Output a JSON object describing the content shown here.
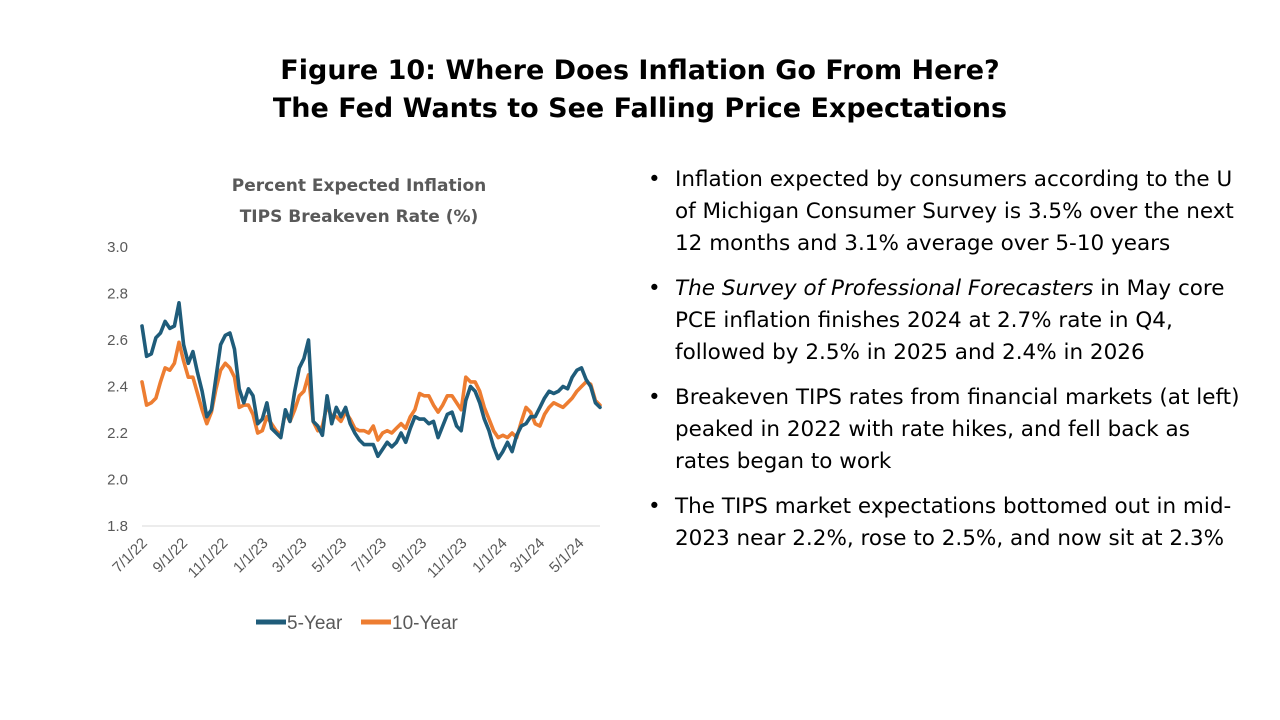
{
  "figure": {
    "title_line1": "Figure 10: Where Does Inflation Go From Here?",
    "title_line2": "The Fed Wants to See Falling Price Expectations"
  },
  "chart_data": {
    "type": "line",
    "title_line1": "Percent Expected Inflation",
    "title_line2": "TIPS Breakeven Rate (%)",
    "xlabel": "",
    "ylabel": "",
    "ylim": [
      1.8,
      3.0
    ],
    "yticks": [
      "3.0",
      "2.8",
      "2.6",
      "2.4",
      "2.2",
      "2.0",
      "1.8"
    ],
    "ytick_values": [
      3.0,
      2.8,
      2.6,
      2.4,
      2.2,
      2.0,
      1.8
    ],
    "xticks": [
      "7/1/22",
      "9/1/22",
      "11/1/22",
      "1/1/23",
      "3/1/23",
      "5/1/23",
      "7/1/23",
      "9/1/23",
      "11/1/23",
      "1/1/24",
      "3/1/24",
      "5/1/24"
    ],
    "x_index_range": [
      0,
      99
    ],
    "xtick_indices": [
      0,
      8.7,
      17.4,
      26.1,
      34.5,
      43.1,
      51.7,
      60.4,
      69.1,
      77.8,
      85.9,
      94.4
    ],
    "grid": false,
    "legend_position": "bottom",
    "colors": {
      "five_year": "#1F5C7A",
      "ten_year": "#ED7D31"
    },
    "series": [
      {
        "name": "5-Year",
        "values": [
          2.66,
          2.53,
          2.54,
          2.61,
          2.63,
          2.68,
          2.65,
          2.66,
          2.76,
          2.58,
          2.5,
          2.55,
          2.46,
          2.38,
          2.27,
          2.3,
          2.44,
          2.58,
          2.62,
          2.63,
          2.56,
          2.39,
          2.33,
          2.39,
          2.36,
          2.24,
          2.26,
          2.33,
          2.22,
          2.2,
          2.18,
          2.3,
          2.25,
          2.38,
          2.48,
          2.52,
          2.6,
          2.25,
          2.23,
          2.19,
          2.36,
          2.24,
          2.31,
          2.27,
          2.31,
          2.24,
          2.2,
          2.17,
          2.15,
          2.15,
          2.15,
          2.1,
          2.13,
          2.16,
          2.14,
          2.16,
          2.2,
          2.16,
          2.22,
          2.27,
          2.26,
          2.26,
          2.24,
          2.25,
          2.18,
          2.23,
          2.28,
          2.29,
          2.23,
          2.21,
          2.34,
          2.4,
          2.38,
          2.33,
          2.26,
          2.21,
          2.14,
          2.09,
          2.12,
          2.16,
          2.12,
          2.19,
          2.23,
          2.24,
          2.27,
          2.27,
          2.31,
          2.35,
          2.38,
          2.37,
          2.38,
          2.4,
          2.39,
          2.44,
          2.47,
          2.48,
          2.43,
          2.4,
          2.33,
          2.31
        ]
      },
      {
        "name": "10-Year",
        "values": [
          2.42,
          2.32,
          2.33,
          2.35,
          2.42,
          2.48,
          2.47,
          2.5,
          2.59,
          2.51,
          2.44,
          2.44,
          2.37,
          2.3,
          2.24,
          2.29,
          2.39,
          2.47,
          2.5,
          2.48,
          2.44,
          2.31,
          2.32,
          2.32,
          2.28,
          2.2,
          2.21,
          2.27,
          2.24,
          2.21,
          2.19,
          2.29,
          2.25,
          2.3,
          2.36,
          2.38,
          2.45,
          2.25,
          2.21,
          2.23,
          2.32,
          2.27,
          2.27,
          2.25,
          2.29,
          2.26,
          2.22,
          2.21,
          2.21,
          2.2,
          2.23,
          2.17,
          2.2,
          2.21,
          2.2,
          2.22,
          2.24,
          2.22,
          2.27,
          2.3,
          2.37,
          2.36,
          2.36,
          2.32,
          2.29,
          2.32,
          2.36,
          2.36,
          2.33,
          2.3,
          2.44,
          2.42,
          2.42,
          2.38,
          2.31,
          2.26,
          2.21,
          2.18,
          2.19,
          2.18,
          2.2,
          2.18,
          2.25,
          2.31,
          2.29,
          2.24,
          2.23,
          2.28,
          2.31,
          2.33,
          2.32,
          2.31,
          2.33,
          2.35,
          2.38,
          2.4,
          2.42,
          2.41,
          2.34,
          2.32
        ]
      }
    ]
  },
  "bullets": [
    {
      "prefix_italic": "",
      "text": "Inflation expected by consumers according to the U of Michigan Consumer Survey is 3.5% over the next 12 months and 3.1% average over 5-10 years"
    },
    {
      "prefix_italic": "The Survey of Professional Forecasters",
      "text": " in May core PCE inflation finishes 2024 at 2.7% rate in Q4, followed by 2.5% in 2025 and 2.4% in 2026"
    },
    {
      "prefix_italic": "",
      "text": "Breakeven TIPS rates from financial markets (at left) peaked in 2022 with rate hikes, and fell back as rates began to work"
    },
    {
      "prefix_italic": "",
      "text": "The TIPS market expectations bottomed out in mid-2023 near 2.2%, rose to 2.5%, and now sit at 2.3%"
    }
  ]
}
